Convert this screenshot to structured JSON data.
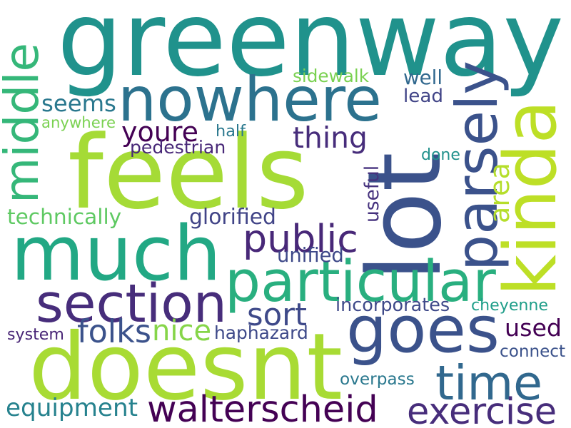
{
  "words": [
    {
      "text": "greenway",
      "color": "#20928c"
    },
    {
      "text": "nowhere",
      "color": "#2c728e"
    },
    {
      "text": "lot",
      "color": "#3b528b"
    },
    {
      "text": "feels",
      "color": "#a5db36"
    },
    {
      "text": "much",
      "color": "#22a884"
    },
    {
      "text": "kinda",
      "color": "#bddf26"
    },
    {
      "text": "middle",
      "color": "#35b779"
    },
    {
      "text": "parsely",
      "color": "#3b528b"
    },
    {
      "text": "seems",
      "color": "#2a788e"
    },
    {
      "text": "youre",
      "color": "#440154"
    },
    {
      "text": "thing",
      "color": "#472d7b"
    },
    {
      "text": "half",
      "color": "#2a788e"
    },
    {
      "text": "anywhere",
      "color": "#7ad151"
    },
    {
      "text": "pedestrian",
      "color": "#482878"
    },
    {
      "text": "sidewalk",
      "color": "#7ad151"
    },
    {
      "text": "well",
      "color": "#31688e"
    },
    {
      "text": "lead",
      "color": "#414487"
    },
    {
      "text": "done",
      "color": "#21918c"
    },
    {
      "text": "useful",
      "color": "#46327e"
    },
    {
      "text": "area",
      "color": "#b5de2b"
    },
    {
      "text": "technically",
      "color": "#5ec962"
    },
    {
      "text": "glorified",
      "color": "#414487"
    },
    {
      "text": "public",
      "color": "#482878"
    },
    {
      "text": "particular",
      "color": "#29af7f"
    },
    {
      "text": "unified",
      "color": "#3e4989"
    },
    {
      "text": "section",
      "color": "#472d7b"
    },
    {
      "text": "goes",
      "color": "#3b528b"
    },
    {
      "text": "sort",
      "color": "#3e4989"
    },
    {
      "text": "used",
      "color": "#440154"
    },
    {
      "text": "folks",
      "color": "#3b528b"
    },
    {
      "text": "nice",
      "color": "#86d549"
    },
    {
      "text": "incorporates",
      "color": "#3e4989"
    },
    {
      "text": "cheyenne",
      "color": "#1f9e89"
    },
    {
      "text": "system",
      "color": "#482576"
    },
    {
      "text": "haphazard",
      "color": "#3e4989"
    },
    {
      "text": "connect",
      "color": "#3b528b"
    },
    {
      "text": "doesnt",
      "color": "#a8db34"
    },
    {
      "text": "time",
      "color": "#31688e"
    },
    {
      "text": "overpass",
      "color": "#2a788e"
    },
    {
      "text": "equipment",
      "color": "#26828e"
    },
    {
      "text": "walterscheid",
      "color": "#440154"
    },
    {
      "text": "exercise",
      "color": "#472d7b"
    }
  ]
}
